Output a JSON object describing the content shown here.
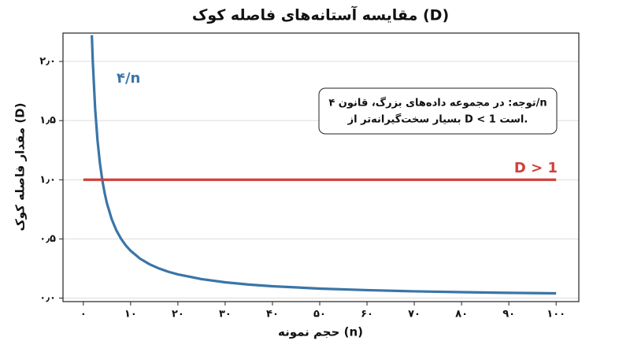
{
  "chart_data": {
    "type": "line",
    "title": "مقایسه آستانه‌های فاصله کوک (D)",
    "x_label": "حجم نمونه (n)",
    "y_label": "مقدار فاصله کوک (D)",
    "annotation": [
      "توجه: در مجموعه داده‌های بزرگ، قانون ۴/n",
      "بسیار سخت‌گیرانه‌تر از D < 1 است."
    ],
    "xlim": [
      -4.3,
      104.8
    ],
    "ylim": [
      -0.03,
      2.24
    ],
    "xticks": [
      {
        "value": 0,
        "label": "۰"
      },
      {
        "value": 10,
        "label": "۱۰"
      },
      {
        "value": 20,
        "label": "۲۰"
      },
      {
        "value": 30,
        "label": "۳۰"
      },
      {
        "value": 40,
        "label": "۴۰"
      },
      {
        "value": 50,
        "label": "۵۰"
      },
      {
        "value": 60,
        "label": "۶۰"
      },
      {
        "value": 70,
        "label": "۷۰"
      },
      {
        "value": 80,
        "label": "۸۰"
      },
      {
        "value": 90,
        "label": "۹۰"
      },
      {
        "value": 100,
        "label": "۱۰۰"
      }
    ],
    "yticks": [
      {
        "value": 0,
        "label": "۰٫۰"
      },
      {
        "value": 0.5,
        "label": "۰٫۵"
      },
      {
        "value": 1,
        "label": "۱٫۰"
      },
      {
        "value": 1.5,
        "label": "۱٫۵"
      },
      {
        "value": 2,
        "label": "۲٫۰"
      }
    ],
    "grid": true,
    "series": [
      {
        "name": "۴/n",
        "color": "#3a75a8",
        "x": [
          1.8,
          2,
          2.5,
          3,
          3.5,
          4,
          4.5,
          5,
          6,
          7,
          8,
          9,
          10,
          12,
          14,
          16,
          18,
          20,
          25,
          30,
          35,
          40,
          50,
          60,
          70,
          80,
          90,
          100
        ],
        "values": [
          2.222,
          2,
          1.6,
          1.333,
          1.143,
          1,
          0.889,
          0.8,
          0.667,
          0.571,
          0.5,
          0.444,
          0.4,
          0.333,
          0.286,
          0.25,
          0.222,
          0.2,
          0.16,
          0.133,
          0.114,
          0.1,
          0.08,
          0.067,
          0.057,
          0.05,
          0.044,
          0.04
        ]
      },
      {
        "name": "D > 1",
        "color": "#d0403a",
        "x": [
          0,
          100
        ],
        "values": [
          1,
          1
        ]
      }
    ]
  }
}
